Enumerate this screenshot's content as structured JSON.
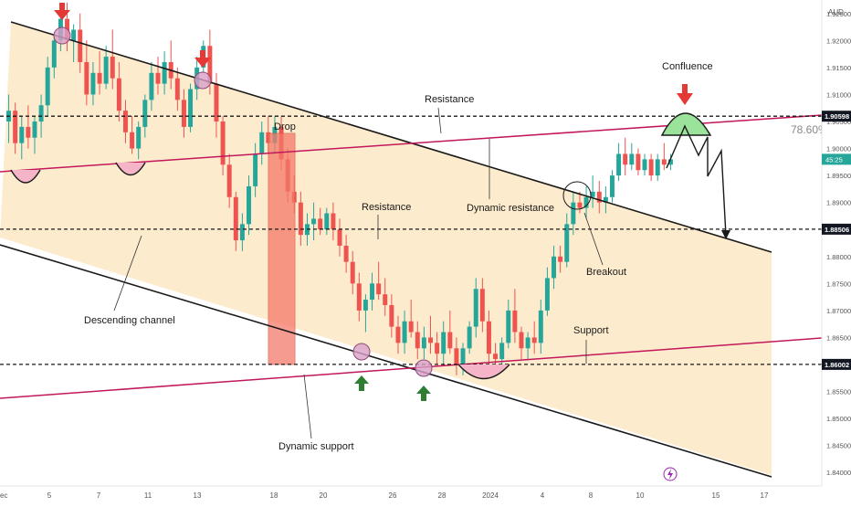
{
  "chart_data": {
    "type": "candlestick",
    "currency_label": "AUD",
    "y_ticks": [
      1.84,
      1.845,
      1.85,
      1.855,
      1.86,
      1.865,
      1.87,
      1.875,
      1.88,
      1.885,
      1.89,
      1.895,
      1.9,
      1.905,
      1.91,
      1.915,
      1.92,
      1.925
    ],
    "x_ticks": [
      "ec",
      "5",
      "7",
      "11",
      "13",
      "18",
      "20",
      "26",
      "28",
      "2024",
      "4",
      "8",
      "10",
      "15",
      "17"
    ],
    "ylim": [
      1.8375,
      1.9275
    ],
    "levels": [
      {
        "name": "resistance-fib",
        "value": 1.90598,
        "badge": "1.90598",
        "dark": true
      },
      {
        "name": "middle",
        "value": 1.88506,
        "badge": "1.88506",
        "dark": true
      },
      {
        "name": "support",
        "value": 1.86002,
        "badge": "1.86002",
        "dark": true
      }
    ],
    "current_price_badge": "45:25",
    "fib_label": "78.60%",
    "annotations": {
      "drop": "Drop",
      "resistance_top": "Resistance",
      "resistance_mid": "Resistance",
      "dynamic_resistance": "Dynamic resistance",
      "descending_channel": "Descending channel",
      "dynamic_support": "Dynamic support",
      "support": "Support",
      "breakout": "Breakout",
      "confluence": "Confluence"
    },
    "colors": {
      "up": "#26a69a",
      "down": "#ef5350",
      "channel_fill": "#fde8c4",
      "dynamic_line": "#c2185b",
      "drop_zone": "#f47a6a",
      "marker": "#d8a0c8",
      "confluence_fill": "#9be39b",
      "arrow_red": "#e53935",
      "arrow_green": "#2e7d32"
    },
    "candles": [
      [
        1.905,
        1.91,
        1.901,
        1.907
      ],
      [
        1.907,
        1.9085,
        1.899,
        1.901
      ],
      [
        1.901,
        1.906,
        1.898,
        1.904
      ],
      [
        1.904,
        1.908,
        1.9,
        1.902
      ],
      [
        1.902,
        1.906,
        1.899,
        1.905
      ],
      [
        1.905,
        1.91,
        1.902,
        1.908
      ],
      [
        1.908,
        1.917,
        1.906,
        1.915
      ],
      [
        1.915,
        1.921,
        1.913,
        1.92
      ],
      [
        1.92,
        1.926,
        1.918,
        1.924
      ],
      [
        1.924,
        1.927,
        1.918,
        1.92
      ],
      [
        1.92,
        1.923,
        1.916,
        1.922
      ],
      [
        1.922,
        1.925,
        1.914,
        1.916
      ],
      [
        1.916,
        1.92,
        1.908,
        1.91
      ],
      [
        1.91,
        1.916,
        1.908,
        1.914
      ],
      [
        1.914,
        1.918,
        1.91,
        1.912
      ],
      [
        1.912,
        1.919,
        1.911,
        1.917
      ],
      [
        1.917,
        1.922,
        1.911,
        1.913
      ],
      [
        1.913,
        1.916,
        1.905,
        1.907
      ],
      [
        1.907,
        1.909,
        1.901,
        1.903
      ],
      [
        1.903,
        1.906,
        1.899,
        1.9
      ],
      [
        1.9,
        1.905,
        1.898,
        1.904
      ],
      [
        1.904,
        1.91,
        1.902,
        1.909
      ],
      [
        1.909,
        1.916,
        1.907,
        1.914
      ],
      [
        1.914,
        1.917,
        1.91,
        1.912
      ],
      [
        1.912,
        1.918,
        1.91,
        1.916
      ],
      [
        1.916,
        1.92,
        1.911,
        1.913
      ],
      [
        1.913,
        1.915,
        1.907,
        1.909
      ],
      [
        1.909,
        1.911,
        1.902,
        1.904
      ],
      [
        1.904,
        1.912,
        1.903,
        1.911
      ],
      [
        1.911,
        1.917,
        1.909,
        1.915
      ],
      [
        1.915,
        1.92,
        1.914,
        1.919
      ],
      [
        1.919,
        1.922,
        1.91,
        1.912
      ],
      [
        1.912,
        1.914,
        1.902,
        1.905
      ],
      [
        1.905,
        1.906,
        1.895,
        1.897
      ],
      [
        1.897,
        1.899,
        1.889,
        1.891
      ],
      [
        1.891,
        1.892,
        1.881,
        1.883
      ],
      [
        1.883,
        1.888,
        1.881,
        1.886
      ],
      [
        1.886,
        1.895,
        1.884,
        1.893
      ],
      [
        1.893,
        1.901,
        1.891,
        1.899
      ],
      [
        1.899,
        1.905,
        1.897,
        1.903
      ],
      [
        1.903,
        1.906,
        1.899,
        1.901
      ],
      [
        1.901,
        1.906,
        1.899,
        1.904
      ],
      [
        1.904,
        1.906,
        1.896,
        1.898
      ],
      [
        1.898,
        1.9,
        1.89,
        1.892
      ],
      [
        1.892,
        1.895,
        1.888,
        1.89
      ],
      [
        1.89,
        1.892,
        1.882,
        1.884
      ],
      [
        1.884,
        1.888,
        1.882,
        1.886
      ],
      [
        1.886,
        1.89,
        1.883,
        1.887
      ],
      [
        1.887,
        1.889,
        1.884,
        1.885
      ],
      [
        1.885,
        1.889,
        1.884,
        1.888
      ],
      [
        1.888,
        1.89,
        1.883,
        1.885
      ],
      [
        1.885,
        1.887,
        1.88,
        1.882
      ],
      [
        1.882,
        1.884,
        1.877,
        1.879
      ],
      [
        1.879,
        1.881,
        1.873,
        1.875
      ],
      [
        1.875,
        1.877,
        1.868,
        1.87
      ],
      [
        1.87,
        1.873,
        1.866,
        1.872
      ],
      [
        1.872,
        1.877,
        1.87,
        1.875
      ],
      [
        1.875,
        1.879,
        1.872,
        1.873
      ],
      [
        1.873,
        1.876,
        1.869,
        1.871
      ],
      [
        1.871,
        1.873,
        1.865,
        1.867
      ],
      [
        1.867,
        1.869,
        1.862,
        1.864
      ],
      [
        1.864,
        1.87,
        1.862,
        1.868
      ],
      [
        1.868,
        1.872,
        1.865,
        1.866
      ],
      [
        1.866,
        1.868,
        1.861,
        1.863
      ],
      [
        1.863,
        1.867,
        1.861,
        1.865
      ],
      [
        1.865,
        1.869,
        1.862,
        1.864
      ],
      [
        1.864,
        1.866,
        1.86,
        1.862
      ],
      [
        1.862,
        1.868,
        1.86,
        1.866
      ],
      [
        1.866,
        1.87,
        1.862,
        1.863
      ],
      [
        1.863,
        1.865,
        1.858,
        1.86
      ],
      [
        1.86,
        1.864,
        1.858,
        1.863
      ],
      [
        1.863,
        1.868,
        1.862,
        1.867
      ],
      [
        1.867,
        1.876,
        1.865,
        1.874
      ],
      [
        1.874,
        1.876,
        1.866,
        1.868
      ],
      [
        1.868,
        1.87,
        1.86,
        1.862
      ],
      [
        1.862,
        1.864,
        1.859,
        1.861
      ],
      [
        1.861,
        1.865,
        1.859,
        1.864
      ],
      [
        1.864,
        1.872,
        1.863,
        1.87
      ],
      [
        1.87,
        1.874,
        1.864,
        1.866
      ],
      [
        1.866,
        1.867,
        1.861,
        1.863
      ],
      [
        1.863,
        1.866,
        1.861,
        1.865
      ],
      [
        1.865,
        1.868,
        1.862,
        1.864
      ],
      [
        1.864,
        1.872,
        1.862,
        1.87
      ],
      [
        1.87,
        1.878,
        1.869,
        1.876
      ],
      [
        1.876,
        1.882,
        1.874,
        1.88
      ],
      [
        1.88,
        1.882,
        1.877,
        1.879
      ],
      [
        1.879,
        1.888,
        1.878,
        1.886
      ],
      [
        1.886,
        1.892,
        1.884,
        1.89
      ],
      [
        1.89,
        1.892,
        1.888,
        1.889
      ],
      [
        1.889,
        1.893,
        1.887,
        1.891
      ],
      [
        1.891,
        1.895,
        1.889,
        1.892
      ],
      [
        1.892,
        1.894,
        1.888,
        1.89
      ],
      [
        1.89,
        1.893,
        1.888,
        1.891
      ],
      [
        1.891,
        1.896,
        1.89,
        1.895
      ],
      [
        1.895,
        1.901,
        1.894,
        1.899
      ],
      [
        1.899,
        1.902,
        1.895,
        1.897
      ],
      [
        1.897,
        1.901,
        1.896,
        1.899
      ],
      [
        1.899,
        1.9,
        1.895,
        1.896
      ],
      [
        1.896,
        1.899,
        1.895,
        1.898
      ],
      [
        1.898,
        1.899,
        1.894,
        1.895
      ],
      [
        1.895,
        1.899,
        1.894,
        1.898
      ],
      [
        1.898,
        1.901,
        1.896,
        1.897
      ],
      [
        1.897,
        1.899,
        1.896,
        1.898
      ]
    ]
  }
}
